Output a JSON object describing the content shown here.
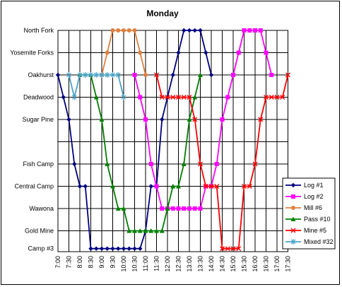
{
  "chart_data": {
    "type": "line",
    "title": "Monday",
    "stations": [
      "North Fork",
      "Yosemite Forks",
      "Oakhurst",
      "Deadwood",
      "Sugar Pine",
      "Fish Camp",
      "Central Camp",
      "Wawona",
      "Gold Mine",
      "Camp #3"
    ],
    "times": [
      "7:00",
      "7:30",
      "8:00",
      "8:30",
      "9:00",
      "9:30",
      "10:00",
      "10:30",
      "11:00",
      "11:30",
      "12:00",
      "12:30",
      "13:00",
      "13:30",
      "14:00",
      "14:30",
      "15:00",
      "15:30",
      "16:00",
      "16:30",
      "17:00",
      "17:30"
    ],
    "grid": true,
    "legend_position": "bottom-right",
    "series": [
      {
        "name": "Log #1",
        "color": "#000080",
        "marker": "diamond",
        "points": [
          [
            "7:00",
            "Oakhurst"
          ],
          [
            "7:15",
            "Deadwood"
          ],
          [
            "7:30",
            "Sugar Pine"
          ],
          [
            "7:45",
            "Fish Camp"
          ],
          [
            "8:00",
            "Central Camp"
          ],
          [
            "8:15",
            "Central Camp"
          ],
          [
            "8:30",
            "Camp #3"
          ],
          [
            "8:45",
            "Camp #3"
          ],
          [
            "9:00",
            "Camp #3"
          ],
          [
            "9:15",
            "Camp #3"
          ],
          [
            "9:30",
            "Camp #3"
          ],
          [
            "9:45",
            "Camp #3"
          ],
          [
            "10:00",
            "Camp #3"
          ],
          [
            "10:15",
            "Camp #3"
          ],
          [
            "10:30",
            "Camp #3"
          ],
          [
            "10:45",
            "Camp #3"
          ],
          [
            "11:00",
            "Gold Mine"
          ],
          [
            "11:15",
            "Central Camp"
          ],
          [
            "11:30",
            "Central Camp"
          ],
          [
            "11:45",
            "Sugar Pine"
          ],
          [
            "12:00",
            "Deadwood"
          ],
          [
            "12:15",
            "Oakhurst"
          ],
          [
            "12:30",
            "Yosemite Forks"
          ],
          [
            "12:45",
            "North Fork"
          ],
          [
            "13:00",
            "North Fork"
          ],
          [
            "13:15",
            "North Fork"
          ],
          [
            "13:30",
            "North Fork"
          ],
          [
            "13:45",
            "Yosemite Forks"
          ],
          [
            "14:00",
            "Oakhurst"
          ]
        ]
      },
      {
        "name": "Log #2",
        "color": "#ff00ff",
        "marker": "square",
        "points": [
          [
            "10:30",
            "Oakhurst"
          ],
          [
            "10:45",
            "Deadwood"
          ],
          [
            "11:00",
            "Sugar Pine"
          ],
          [
            "11:15",
            "Fish Camp"
          ],
          [
            "11:30",
            "Central Camp"
          ],
          [
            "11:45",
            "Wawona"
          ],
          [
            "12:00",
            "Wawona"
          ],
          [
            "12:15",
            "Wawona"
          ],
          [
            "12:30",
            "Wawona"
          ],
          [
            "12:45",
            "Wawona"
          ],
          [
            "13:00",
            "Wawona"
          ],
          [
            "13:15",
            "Wawona"
          ],
          [
            "13:30",
            "Wawona"
          ],
          [
            "13:45",
            "Central Camp"
          ],
          [
            "14:00",
            "Central Camp"
          ],
          [
            "14:15",
            "Fish Camp"
          ],
          [
            "14:30",
            "Sugar Pine"
          ],
          [
            "14:45",
            "Deadwood"
          ],
          [
            "15:00",
            "Oakhurst"
          ],
          [
            "15:15",
            "Yosemite Forks"
          ],
          [
            "15:30",
            "North Fork"
          ],
          [
            "15:45",
            "North Fork"
          ],
          [
            "16:00",
            "North Fork"
          ],
          [
            "16:15",
            "North Fork"
          ],
          [
            "16:30",
            "Yosemite Forks"
          ],
          [
            "16:45",
            "Oakhurst"
          ]
        ]
      },
      {
        "name": "Mill #6",
        "color": "#e08040",
        "marker": "circle",
        "points": [
          [
            "9:00",
            "Oakhurst"
          ],
          [
            "9:15",
            "Yosemite Forks"
          ],
          [
            "9:30",
            "North Fork"
          ],
          [
            "9:45",
            "North Fork"
          ],
          [
            "10:00",
            "North Fork"
          ],
          [
            "10:15",
            "North Fork"
          ],
          [
            "10:30",
            "North Fork"
          ],
          [
            "10:45",
            "Yosemite Forks"
          ],
          [
            "11:00",
            "Oakhurst"
          ]
        ]
      },
      {
        "name": "Pass #10",
        "color": "#008000",
        "marker": "triangle",
        "points": [
          [
            "8:00",
            "Oakhurst"
          ],
          [
            "8:30",
            "Oakhurst"
          ],
          [
            "8:45",
            "Deadwood"
          ],
          [
            "9:00",
            "Sugar Pine"
          ],
          [
            "9:15",
            "Fish Camp"
          ],
          [
            "9:30",
            "Central Camp"
          ],
          [
            "9:45",
            "Wawona"
          ],
          [
            "10:00",
            "Wawona"
          ],
          [
            "10:15",
            "Gold Mine"
          ],
          [
            "10:30",
            "Gold Mine"
          ],
          [
            "10:45",
            "Gold Mine"
          ],
          [
            "11:00",
            "Gold Mine"
          ],
          [
            "11:15",
            "Gold Mine"
          ],
          [
            "11:30",
            "Gold Mine"
          ],
          [
            "11:45",
            "Gold Mine"
          ],
          [
            "12:00",
            "Wawona"
          ],
          [
            "12:15",
            "Central Camp"
          ],
          [
            "12:30",
            "Central Camp"
          ],
          [
            "12:45",
            "Fish Camp"
          ],
          [
            "13:00",
            "Sugar Pine"
          ],
          [
            "13:15",
            "Deadwood"
          ],
          [
            "13:30",
            "Oakhurst"
          ]
        ]
      },
      {
        "name": "Mine #5",
        "color": "#ff0000",
        "marker": "x",
        "points": [
          [
            "11:30",
            "Oakhurst"
          ],
          [
            "11:45",
            "Deadwood"
          ],
          [
            "12:00",
            "Deadwood"
          ],
          [
            "12:15",
            "Deadwood"
          ],
          [
            "12:30",
            "Deadwood"
          ],
          [
            "12:45",
            "Deadwood"
          ],
          [
            "13:00",
            "Deadwood"
          ],
          [
            "13:15",
            "Sugar Pine"
          ],
          [
            "13:30",
            "Fish Camp"
          ],
          [
            "13:45",
            "Central Camp"
          ],
          [
            "14:00",
            "Central Camp"
          ],
          [
            "14:15",
            "Central Camp"
          ],
          [
            "14:30",
            "Camp #3"
          ],
          [
            "14:45",
            "Camp #3"
          ],
          [
            "15:00",
            "Camp #3"
          ],
          [
            "15:15",
            "Camp #3"
          ],
          [
            "15:30",
            "Central Camp"
          ],
          [
            "15:45",
            "Central Camp"
          ],
          [
            "16:00",
            "Fish Camp"
          ],
          [
            "16:15",
            "Sugar Pine"
          ],
          [
            "16:30",
            "Deadwood"
          ],
          [
            "16:45",
            "Deadwood"
          ],
          [
            "17:00",
            "Deadwood"
          ],
          [
            "17:15",
            "Deadwood"
          ],
          [
            "17:30",
            "Oakhurst"
          ]
        ]
      },
      {
        "name": "Mixed #32",
        "color": "#4aa3c8",
        "marker": "star",
        "points": [
          [
            "7:30",
            "Oakhurst"
          ],
          [
            "7:45",
            "Deadwood"
          ],
          [
            "8:00",
            "Oakhurst"
          ],
          [
            "8:15",
            "Oakhurst"
          ],
          [
            "8:30",
            "Oakhurst"
          ],
          [
            "8:45",
            "Oakhurst"
          ],
          [
            "9:00",
            "Oakhurst"
          ],
          [
            "9:15",
            "Oakhurst"
          ],
          [
            "9:30",
            "Oakhurst"
          ],
          [
            "9:45",
            "Oakhurst"
          ],
          [
            "10:00",
            "Deadwood"
          ]
        ]
      }
    ]
  }
}
